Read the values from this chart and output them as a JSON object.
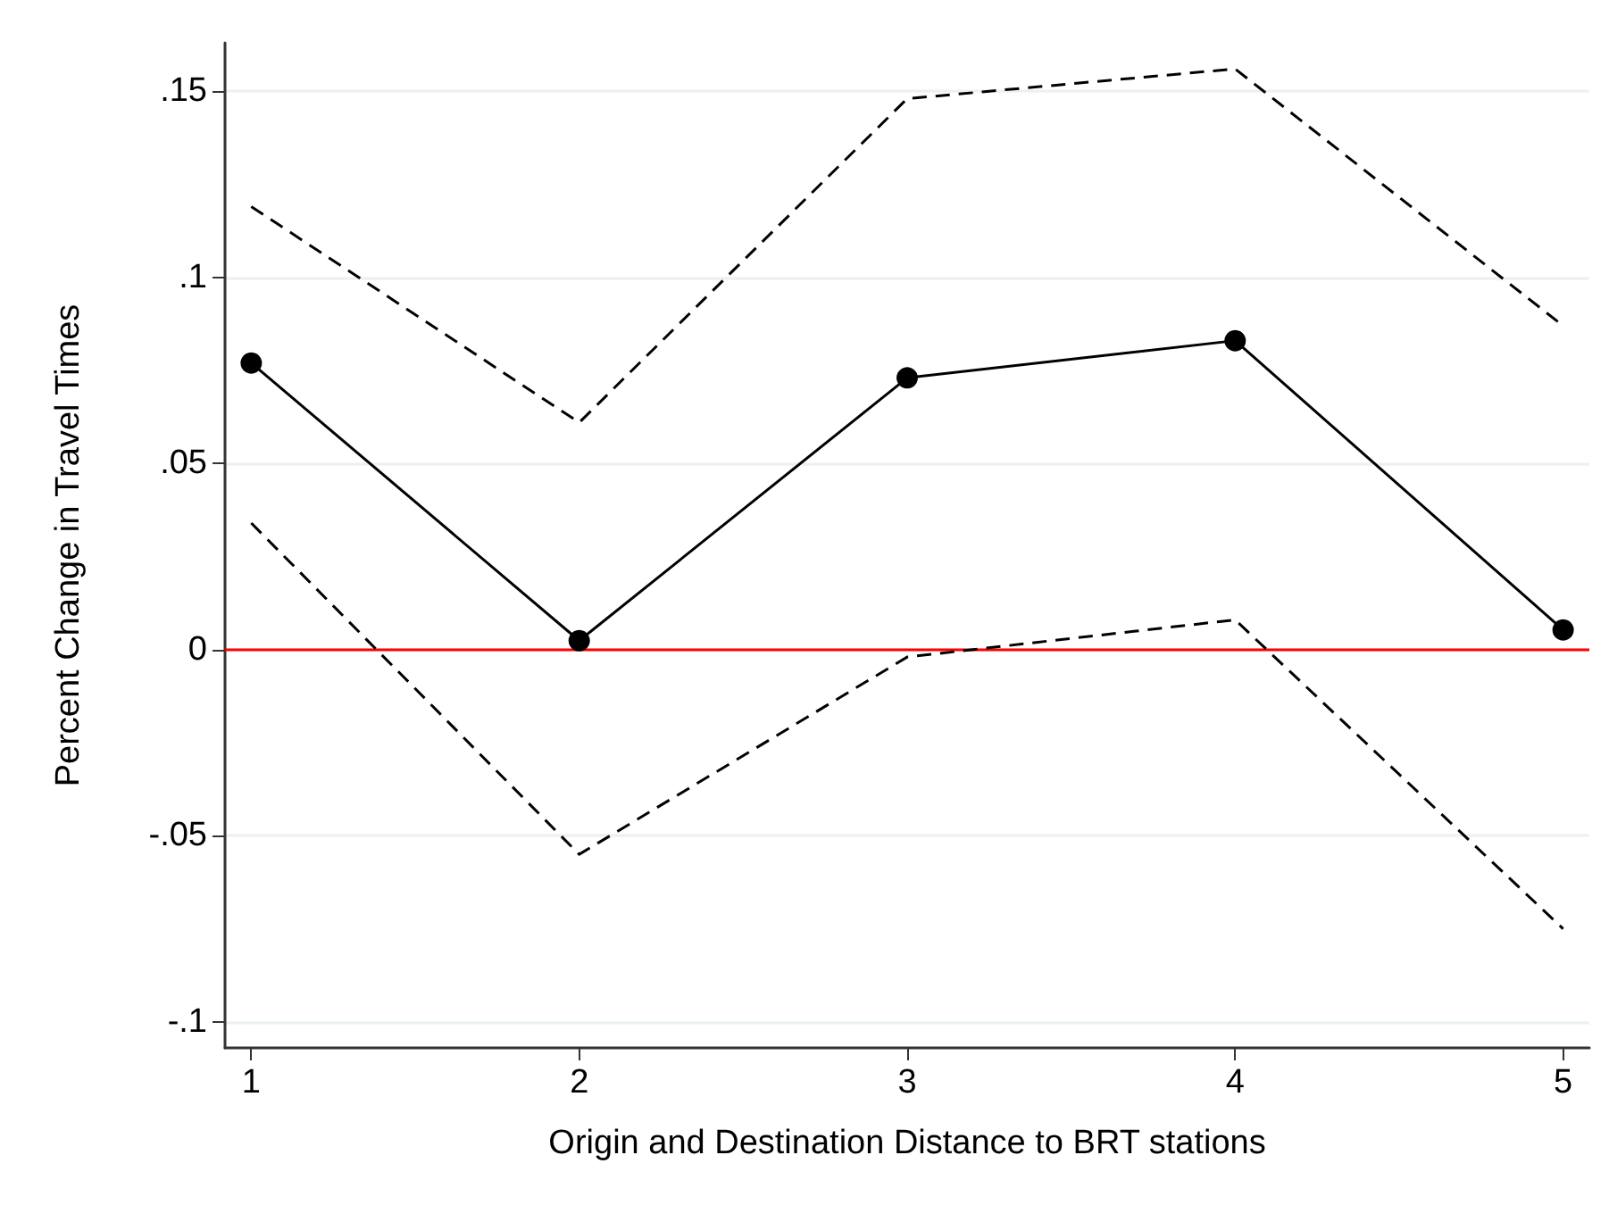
{
  "chart_data": {
    "type": "line",
    "xlabel": "Origin and Destination Distance to BRT stations",
    "ylabel": "Percent Change in Travel Times",
    "x": [
      1,
      2,
      3,
      4,
      5
    ],
    "series": [
      {
        "color": "#000000",
        "values": [
          0.077,
          0.0024,
          0.073,
          0.083,
          0.0053
        ],
        "marker": "circle",
        "line_style": "solid"
      },
      {
        "color": "#000000",
        "values": [
          0.119,
          0.061,
          0.148,
          0.156,
          0.087
        ],
        "marker": "none",
        "line_style": "dashed"
      },
      {
        "color": "#000000",
        "values": [
          0.034,
          -0.055,
          -0.002,
          0.008,
          -0.075
        ],
        "marker": "none",
        "line_style": "dashed"
      }
    ],
    "xlim": [
      0.92,
      5.08
    ],
    "xticks": [
      1,
      2,
      3,
      4,
      5
    ],
    "ylim": [
      -0.107,
      0.163
    ],
    "yticks": [
      {
        "value": -0.1,
        "label": "-.1"
      },
      {
        "value": -0.05,
        "label": "-.05"
      },
      {
        "value": 0,
        "label": "0"
      },
      {
        "value": 0.05,
        "label": ".05"
      },
      {
        "value": 0.1,
        "label": ".1"
      },
      {
        "value": 0.15,
        "label": ".15"
      }
    ],
    "ref_lines": [
      {
        "axis": "y",
        "value": 0,
        "color": "#ff0000",
        "line_style": "solid"
      }
    ],
    "grid": "y"
  }
}
